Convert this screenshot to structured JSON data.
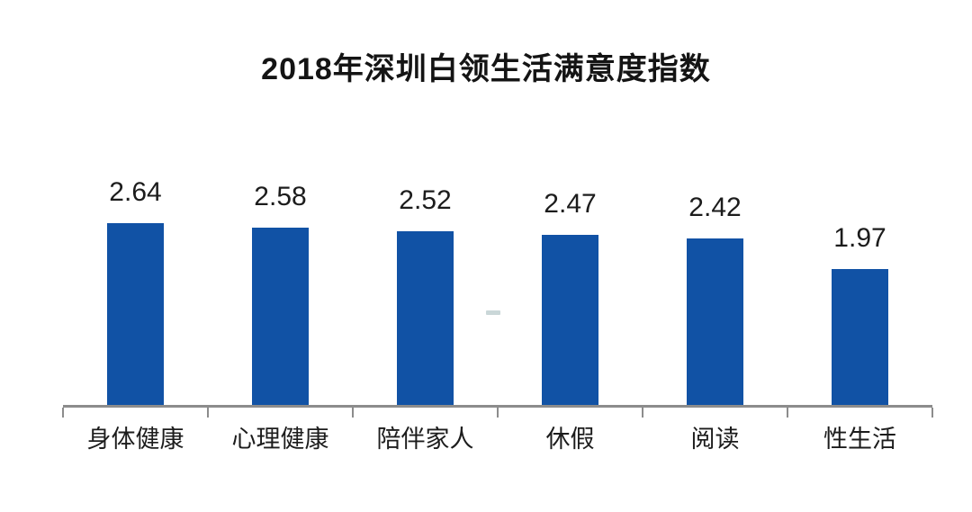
{
  "chart_data": {
    "type": "bar",
    "title": "2018年深圳白领生活满意度指数",
    "categories": [
      "身体健康",
      "心理健康",
      "陪伴家人",
      "休假",
      "阅读",
      "性生活"
    ],
    "values": [
      2.64,
      2.58,
      2.52,
      2.47,
      2.42,
      1.97
    ],
    "value_labels": [
      "2.64",
      "2.58",
      "2.52",
      "2.47",
      "2.42",
      "1.97"
    ],
    "xlabel": "",
    "ylabel": "",
    "ylim": [
      0,
      2.8
    ],
    "grid": false,
    "legend": "none",
    "value_labels_shown": true,
    "bar_color": "#1152a5",
    "axis_color": "#8c8c8c",
    "title_color": "#141414",
    "label_color": "#1c1c1c",
    "background_color": "#ffffff"
  }
}
